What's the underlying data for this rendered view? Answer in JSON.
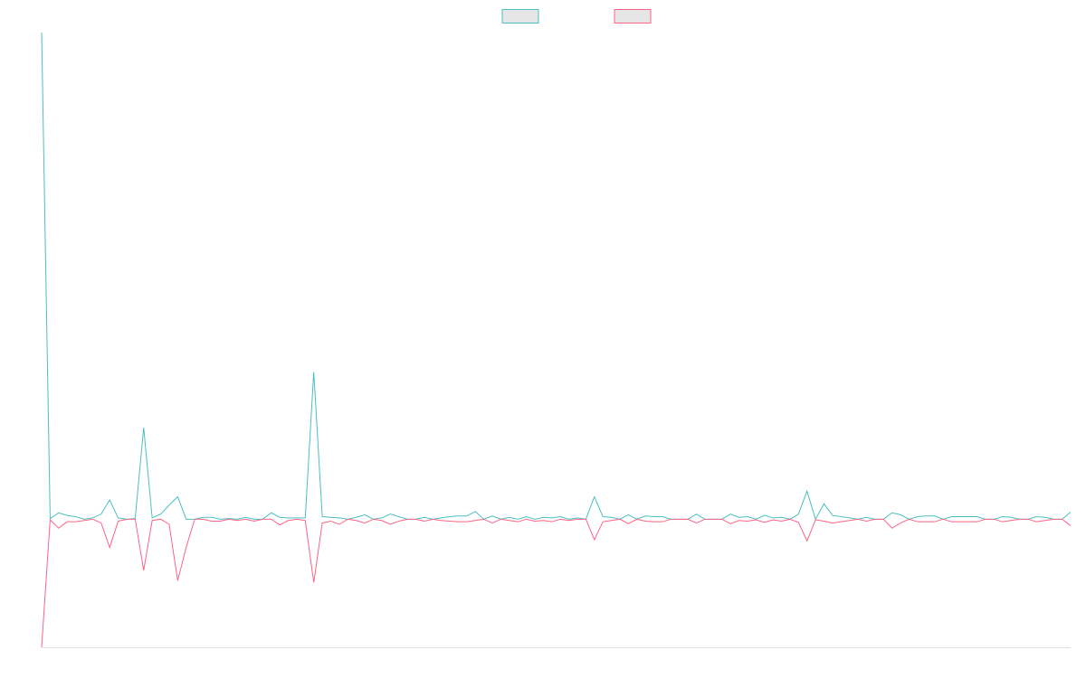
{
  "chart_data": {
    "type": "line",
    "categories": [
      null,
      null,
      null,
      null,
      null,
      null,
      null,
      null,
      null,
      null,
      null,
      null,
      null,
      null,
      null,
      null,
      null,
      null,
      null,
      null,
      null,
      null,
      null,
      null,
      null,
      null,
      null,
      null,
      null,
      null,
      null,
      null,
      null,
      null,
      null,
      null,
      null,
      null,
      null,
      null,
      null,
      null,
      null,
      null,
      null,
      null,
      null,
      null,
      null,
      null,
      null,
      null,
      null,
      null,
      null,
      null,
      null,
      null,
      null,
      null,
      null,
      null,
      null,
      null,
      null,
      null,
      null,
      null,
      null,
      null,
      null,
      null,
      null,
      null,
      null,
      null,
      null,
      null,
      null,
      null,
      null,
      null,
      null,
      null,
      null,
      null,
      null,
      null,
      null,
      null,
      null,
      null,
      null,
      null,
      null,
      null,
      null,
      null,
      null,
      null,
      null,
      null,
      null,
      null,
      null,
      null,
      null,
      null,
      null,
      null,
      null,
      null,
      null,
      null,
      null,
      null,
      null,
      null,
      null,
      null,
      null,
      null
    ],
    "series": [
      {
        "color": "#4bc0c0",
        "values": [
          76,
          0.1,
          1,
          0.6,
          0.4,
          0,
          0.2,
          0.8,
          3,
          0.2,
          0,
          0.1,
          14.3,
          0.2,
          0.8,
          2.2,
          3.5,
          0,
          0,
          0.3,
          0.3,
          0,
          0.1,
          0,
          0.3,
          0,
          0,
          1,
          0.3,
          0.2,
          0.2,
          0.2,
          23,
          0.4,
          0.3,
          0.2,
          0,
          0.3,
          0.7,
          0,
          0.2,
          0.8,
          0.4,
          0,
          0,
          0.3,
          0,
          0.2,
          0.4,
          0.5,
          0.5,
          1.2,
          0,
          0.5,
          0,
          0.3,
          0,
          0.4,
          0,
          0.3,
          0.2,
          0.4,
          0,
          0.2,
          0,
          3.5,
          0.4,
          0.3,
          0,
          0.7,
          0,
          0.5,
          0.4,
          0.4,
          0,
          0,
          0,
          0.8,
          0,
          0,
          0,
          0.8,
          0.3,
          0.4,
          0,
          0.6,
          0.2,
          0.3,
          0,
          0.8,
          4.4,
          0,
          2.4,
          0.6,
          0.4,
          0.2,
          0,
          0.3,
          0,
          0,
          1,
          0.7,
          0,
          0.4,
          0.5,
          0.5,
          0,
          0.4,
          0.4,
          0.4,
          0.4,
          0,
          0,
          0.4,
          0.3,
          0,
          0,
          0.4,
          0.3,
          0,
          0,
          1.1
        ]
      },
      {
        "color": "#ff6384",
        "values": [
          -20,
          -0.1,
          -1.4,
          -0.4,
          -0.4,
          -0.2,
          0,
          -0.6,
          -4.4,
          -0.3,
          0,
          0,
          -8,
          -0.2,
          0,
          -0.8,
          -9.6,
          -4.4,
          0,
          0,
          -0.3,
          -0.3,
          0,
          -0.2,
          0,
          -0.3,
          0,
          0,
          -0.9,
          -0.2,
          0,
          -0.2,
          -9.9,
          -0.6,
          -0.3,
          -0.8,
          0,
          -0.2,
          -0.6,
          0,
          -0.2,
          -0.8,
          -0.3,
          0,
          0,
          -0.3,
          0,
          -0.2,
          -0.3,
          -0.4,
          -0.4,
          -0.2,
          0,
          -0.6,
          0,
          -0.2,
          -0.4,
          0,
          -0.3,
          -0.2,
          -0.4,
          0,
          -0.2,
          0,
          0,
          -3.2,
          -0.4,
          -0.2,
          0,
          -0.7,
          0,
          -0.3,
          -0.4,
          -0.4,
          0,
          0,
          0,
          -0.6,
          0,
          0,
          0,
          -0.7,
          -0.2,
          -0.3,
          -0.1,
          -0.5,
          -0.1,
          -0.3,
          0,
          -0.5,
          -3.4,
          -0.1,
          -0.3,
          -0.6,
          -0.4,
          -0.2,
          0,
          -0.3,
          0,
          0,
          -1.4,
          -0.6,
          0,
          -0.4,
          -0.4,
          -0.4,
          0,
          -0.4,
          -0.4,
          -0.4,
          -0.4,
          0,
          0,
          -0.4,
          -0.2,
          0,
          0,
          -0.4,
          -0.2,
          0,
          0,
          -1
        ]
      }
    ],
    "ylim": [
      -20,
      76
    ],
    "legend": "top"
  }
}
